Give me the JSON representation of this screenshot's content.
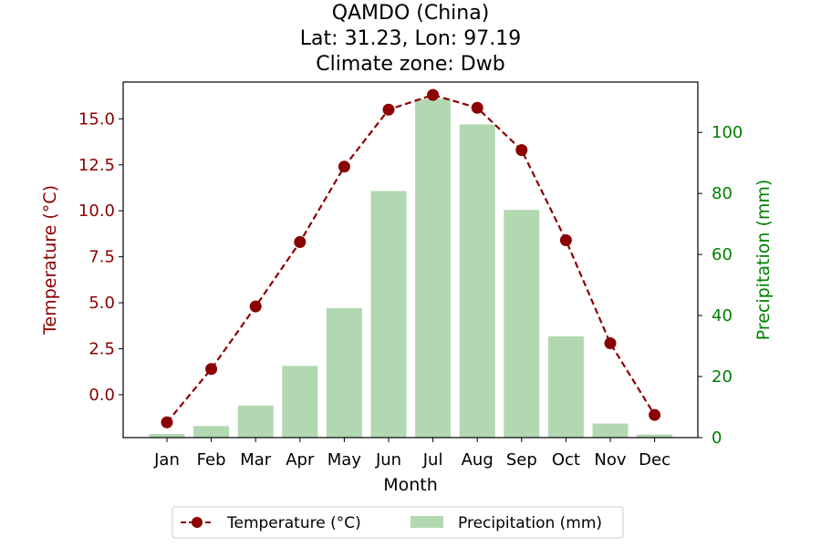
{
  "title_lines": [
    "QAMDO (China)",
    "Lat: 31.23, Lon: 97.19",
    "Climate zone: Dwb"
  ],
  "colors": {
    "temperature": "#8b0000",
    "precipitation_bar": "#b2d8b2",
    "precipitation_axis": "#008000",
    "axis": "#000000"
  },
  "chart_data": {
    "type": "bar+line",
    "categories": [
      "Jan",
      "Feb",
      "Mar",
      "Apr",
      "May",
      "Jun",
      "Jul",
      "Aug",
      "Sep",
      "Oct",
      "Nov",
      "Dec"
    ],
    "xlabel": "Month",
    "series": [
      {
        "name": "Temperature (°C)",
        "type": "line",
        "axis": "left",
        "style": "dashed with circle markers",
        "values": [
          -1.5,
          1.4,
          4.8,
          8.3,
          12.4,
          15.5,
          16.3,
          15.6,
          13.3,
          8.4,
          2.8,
          -1.1
        ]
      },
      {
        "name": "Precipitation (mm)",
        "type": "bar",
        "axis": "right",
        "values": [
          1.2,
          3.8,
          10.5,
          23.5,
          42.4,
          80.8,
          111.0,
          102.6,
          74.6,
          33.2,
          4.6,
          1.0
        ]
      }
    ],
    "left_axis": {
      "label": "Temperature (°C)",
      "ticks": [
        0.0,
        2.5,
        5.0,
        7.5,
        10.0,
        12.5,
        15.0
      ],
      "tick_labels": [
        "0.0",
        "2.5",
        "5.0",
        "7.5",
        "10.0",
        "12.5",
        "15.0"
      ],
      "ylim": [
        -2.33,
        17.0
      ]
    },
    "right_axis": {
      "label": "Precipitation (mm)",
      "ticks": [
        0,
        20,
        40,
        60,
        80,
        100
      ],
      "tick_labels": [
        "0",
        "20",
        "40",
        "60",
        "80",
        "100"
      ],
      "ylim": [
        0,
        116.5
      ]
    },
    "grid": false,
    "legend_position": "bottom-center"
  }
}
